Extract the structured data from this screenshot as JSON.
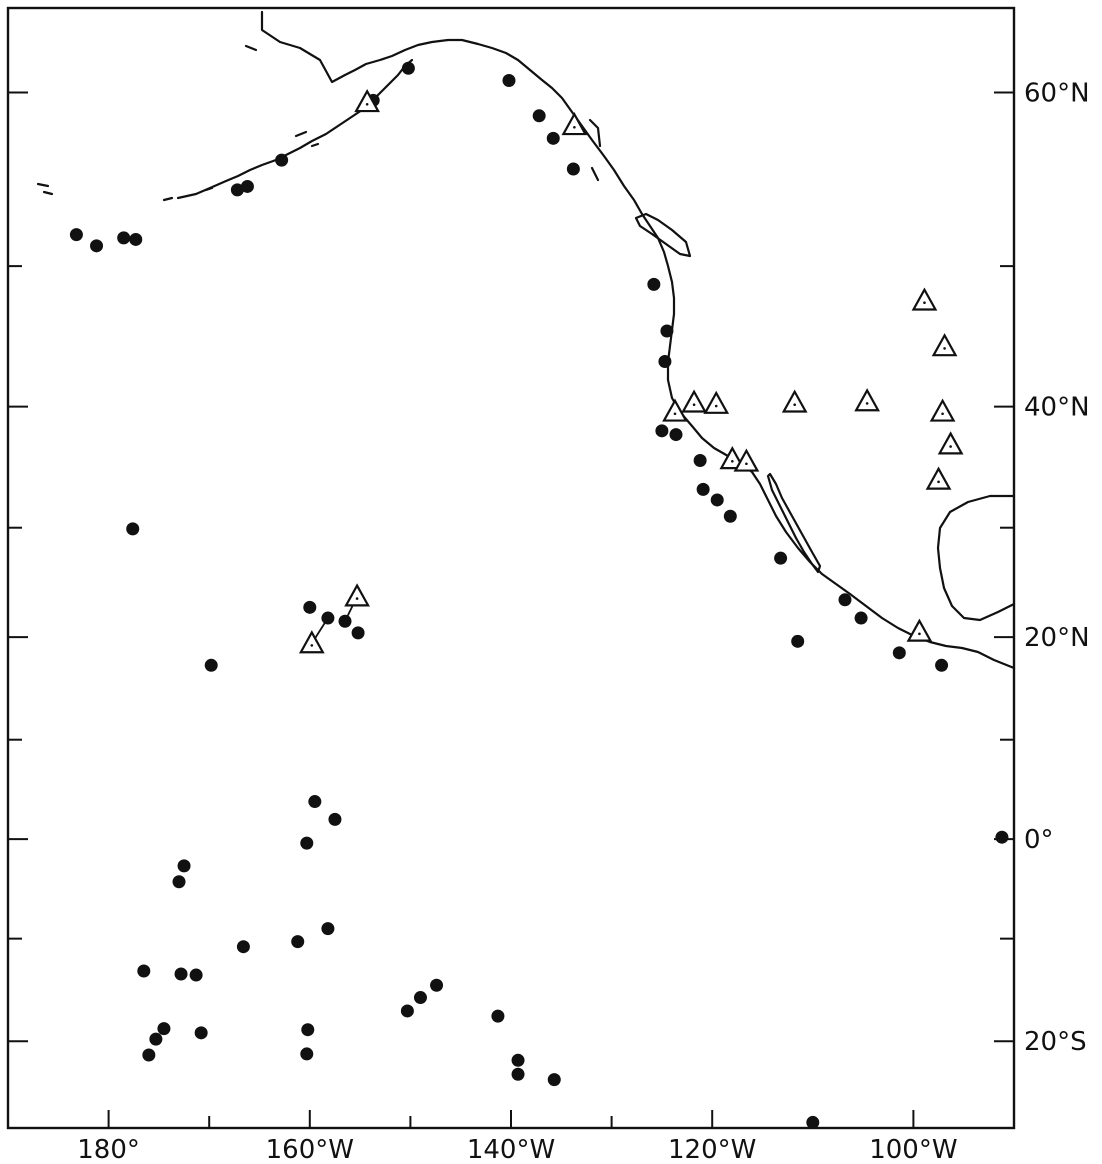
{
  "map": {
    "x_axis_labels": [
      {
        "lon": -180,
        "text": "180°"
      },
      {
        "lon": -160,
        "text": "160°W"
      },
      {
        "lon": -140,
        "text": "140°W"
      },
      {
        "lon": -120,
        "text": "120°W"
      },
      {
        "lon": -100,
        "text": "100°W"
      }
    ],
    "y_axis_labels": [
      {
        "lat": 60,
        "text": "60°N"
      },
      {
        "lat": 40,
        "text": "40°N"
      },
      {
        "lat": 20,
        "text": "20°N"
      },
      {
        "lat": 0,
        "text": "0°"
      },
      {
        "lat": -20,
        "text": "20°S"
      }
    ],
    "x_minor_ticks": [
      -170,
      -150,
      -130,
      -110
    ],
    "y_minor_ticks": [
      50,
      30,
      10,
      -10
    ],
    "lon_range": [
      -190,
      -90
    ],
    "lat_range": [
      -28,
      64
    ],
    "station_dots": [
      [
        -183.2,
        52.0
      ],
      [
        -181.2,
        51.3
      ],
      [
        -178.5,
        51.8
      ],
      [
        -177.3,
        51.7
      ],
      [
        -167.2,
        54.7
      ],
      [
        -166.2,
        54.9
      ],
      [
        -162.8,
        56.4
      ],
      [
        -153.7,
        59.6
      ],
      [
        -150.2,
        61.2
      ],
      [
        -140.2,
        60.6
      ],
      [
        -137.2,
        58.8
      ],
      [
        -135.8,
        57.6
      ],
      [
        -133.8,
        55.9
      ],
      [
        -125.8,
        48.8
      ],
      [
        -124.5,
        45.6
      ],
      [
        -124.7,
        43.4
      ],
      [
        -125.0,
        38.1
      ],
      [
        -123.6,
        37.8
      ],
      [
        -121.2,
        35.7
      ],
      [
        -120.9,
        33.3
      ],
      [
        -119.5,
        32.4
      ],
      [
        -118.2,
        31.0
      ],
      [
        -113.2,
        27.3
      ],
      [
        -106.8,
        23.5
      ],
      [
        -105.2,
        21.8
      ],
      [
        -101.4,
        18.5
      ],
      [
        -97.2,
        17.3
      ],
      [
        -111.5,
        19.6
      ],
      [
        -177.6,
        29.9
      ],
      [
        -169.8,
        17.3
      ],
      [
        -160.0,
        22.8
      ],
      [
        -158.2,
        21.8
      ],
      [
        -156.5,
        21.5
      ],
      [
        -155.2,
        20.4
      ],
      [
        -159.5,
        3.8
      ],
      [
        -157.5,
        2.0
      ],
      [
        -160.3,
        -0.4
      ],
      [
        -172.5,
        -2.7
      ],
      [
        -173.0,
        -4.3
      ],
      [
        -166.6,
        -10.8
      ],
      [
        -161.2,
        -10.3
      ],
      [
        -158.2,
        -9.0
      ],
      [
        -176.5,
        -13.2
      ],
      [
        -172.8,
        -13.5
      ],
      [
        -171.3,
        -13.6
      ],
      [
        -174.5,
        -18.8
      ],
      [
        -175.3,
        -19.8
      ],
      [
        -176.0,
        -21.3
      ],
      [
        -170.8,
        -19.2
      ],
      [
        -160.2,
        -18.9
      ],
      [
        -160.3,
        -21.2
      ],
      [
        -150.3,
        -17.1
      ],
      [
        -149.0,
        -15.8
      ],
      [
        -147.4,
        -14.6
      ],
      [
        -141.3,
        -17.6
      ],
      [
        -139.3,
        -21.8
      ],
      [
        -139.3,
        -23.1
      ],
      [
        -135.7,
        -23.6
      ],
      [
        -110.0,
        -27.5
      ],
      [
        -91.2,
        0.2
      ]
    ],
    "station_triangles": [
      [
        -154.3,
        59.5
      ],
      [
        -133.7,
        58.3
      ],
      [
        -159.8,
        19.4
      ],
      [
        -155.3,
        23.8
      ],
      [
        -123.7,
        39.6
      ],
      [
        -121.8,
        40.3
      ],
      [
        -119.6,
        40.2
      ],
      [
        -111.8,
        40.3
      ],
      [
        -104.6,
        40.4
      ],
      [
        -98.9,
        47.7
      ],
      [
        -96.9,
        44.5
      ],
      [
        -97.1,
        39.6
      ],
      [
        -96.3,
        37.0
      ],
      [
        -97.5,
        34.1
      ],
      [
        -118.0,
        35.8
      ],
      [
        -116.6,
        35.6
      ],
      [
        -99.4,
        20.5
      ]
    ],
    "links": [
      [
        [
          -154.3,
          59.5
        ],
        [
          -153.7,
          59.6
        ]
      ],
      [
        [
          -159.8,
          19.4
        ],
        [
          -158.2,
          21.8
        ]
      ],
      [
        [
          -155.3,
          23.8
        ],
        [
          -156.5,
          21.5
        ]
      ]
    ]
  }
}
